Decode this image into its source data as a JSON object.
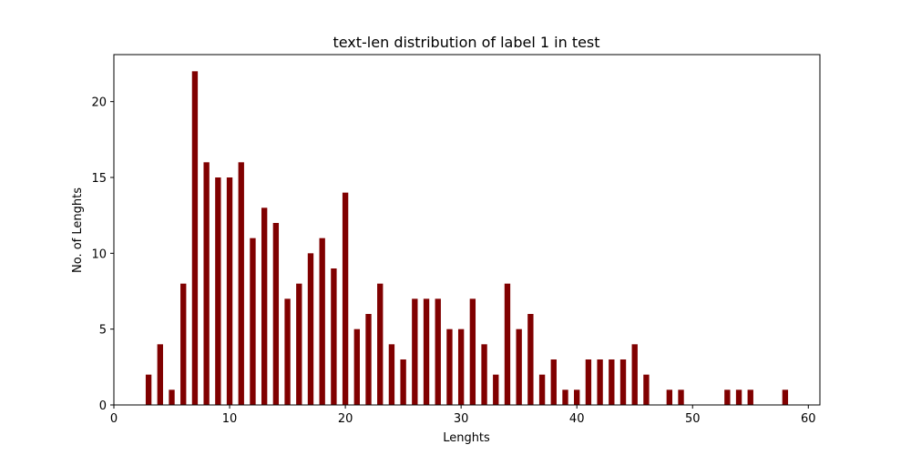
{
  "chart_data": {
    "type": "bar",
    "title": "text-len distribution of label 1 in test",
    "xlabel": "Lenghts",
    "ylabel": "No. of Lenghts",
    "xlim": [
      0,
      61
    ],
    "ylim": [
      0,
      23.1
    ],
    "xticks": [
      0,
      10,
      20,
      30,
      40,
      50,
      60
    ],
    "yticks": [
      0,
      5,
      10,
      15,
      20
    ],
    "bar_color": "#800000",
    "bar_width": 0.5,
    "grid": false,
    "x": [
      3,
      4,
      5,
      6,
      7,
      8,
      9,
      10,
      11,
      12,
      13,
      14,
      15,
      16,
      17,
      18,
      19,
      20,
      21,
      22,
      23,
      24,
      25,
      26,
      27,
      28,
      29,
      30,
      31,
      32,
      33,
      34,
      35,
      36,
      37,
      38,
      39,
      40,
      41,
      42,
      43,
      44,
      45,
      46,
      48,
      49,
      53,
      54,
      55,
      58
    ],
    "values": [
      2,
      4,
      1,
      8,
      22,
      16,
      15,
      15,
      16,
      11,
      13,
      12,
      7,
      8,
      10,
      11,
      9,
      14,
      5,
      6,
      8,
      4,
      3,
      7,
      7,
      7,
      5,
      5,
      7,
      4,
      2,
      8,
      5,
      6,
      2,
      3,
      1,
      1,
      3,
      3,
      3,
      3,
      4,
      2,
      1,
      1,
      1,
      1,
      1,
      1
    ]
  }
}
